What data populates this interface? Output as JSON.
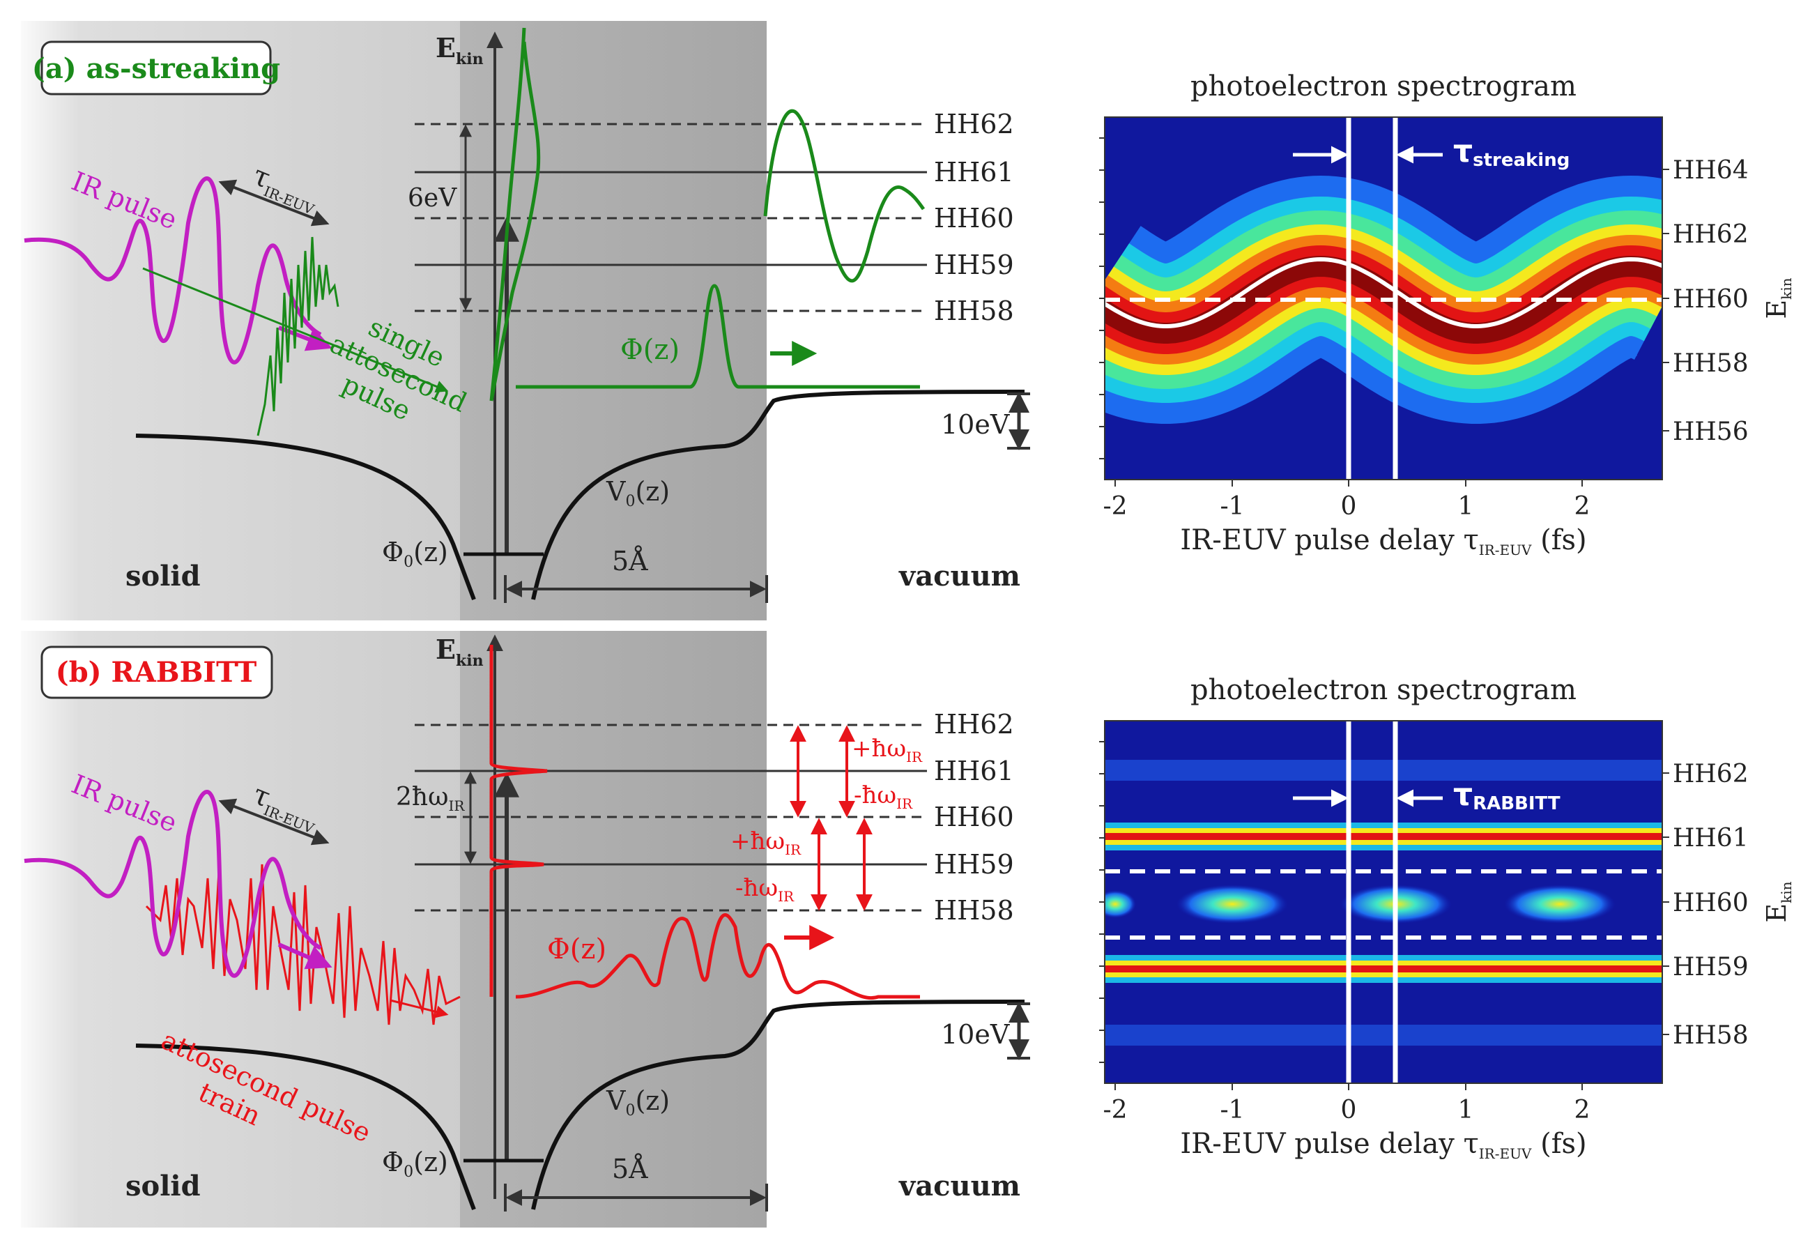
{
  "panels": [
    {
      "tag": "(a) as-streaking",
      "tag_color": "#1a8a1a",
      "accent": "#1a8a1a",
      "ekin": "E",
      "ekin_sub": "kin",
      "harmonics": [
        "HH62",
        "HH61",
        "HH60",
        "HH59",
        "HH58"
      ],
      "gap_label": "6eV",
      "gap_sub": "",
      "phi_label": "Φ(z)",
      "pulse_label_lines": [
        "single",
        "attosecond",
        "pulse"
      ],
      "ir_label": "IR pulse",
      "tau_label": "τ",
      "tau_sub": "IR-EUV",
      "v0_label": "V",
      "v0_sub": "0",
      "v0_tail": "(z)",
      "phi0_label": "Φ",
      "phi0_sub": "0",
      "phi0_tail": "(z)",
      "ten_ev": "10eV",
      "five_a": "5Å",
      "solid": "solid",
      "vacuum": "vacuum",
      "arrows": []
    },
    {
      "tag": "(b) RABBITT",
      "tag_color": "#e8141a",
      "accent": "#e8141a",
      "ekin": "E",
      "ekin_sub": "kin",
      "harmonics": [
        "HH62",
        "HH61",
        "HH60",
        "HH59",
        "HH58"
      ],
      "gap_label": "2ħω",
      "gap_sub": "IR",
      "phi_label": "Φ(z)",
      "pulse_label_lines": [
        "attosecond pulse",
        "train"
      ],
      "ir_label": "IR pulse",
      "tau_label": "τ",
      "tau_sub": "IR-EUV",
      "v0_label": "V",
      "v0_sub": "0",
      "v0_tail": "(z)",
      "phi0_label": "Φ",
      "phi0_sub": "0",
      "phi0_tail": "(z)",
      "ten_ev": "10eV",
      "five_a": "5Å",
      "solid": "solid",
      "vacuum": "vacuum",
      "arrows": [
        {
          "text": "+ħω",
          "sub": "IR"
        },
        {
          "text": "-ħω",
          "sub": "IR"
        },
        {
          "text": "+ħω",
          "sub": "IR"
        },
        {
          "text": "-ħω",
          "sub": "IR"
        }
      ]
    }
  ],
  "spectrograms": [
    {
      "title": "photoelectron spectrogram",
      "xlabel": "IR-EUV pulse delay τ",
      "xlabel_sub": "IR-EUV",
      "xlabel_tail": "(fs)",
      "ylabel": "E",
      "ylabel_sub": "kin",
      "xticks": [
        "-2",
        "-1",
        "0",
        "1",
        "2"
      ],
      "yticks": [
        "HH64",
        "HH62",
        "HH60",
        "HH58",
        "HH56"
      ],
      "tau_label": "τ",
      "tau_sub": "streaking"
    },
    {
      "title": "photoelectron spectrogram",
      "xlabel": "IR-EUV pulse delay τ",
      "xlabel_sub": "IR-EUV",
      "xlabel_tail": "(fs)",
      "ylabel": "E",
      "ylabel_sub": "kin",
      "xticks": [
        "-2",
        "-1",
        "0",
        "1",
        "2"
      ],
      "yticks": [
        "HH62",
        "HH61",
        "HH60",
        "HH59",
        "HH58"
      ],
      "tau_label": "τ",
      "tau_sub": "RABBITT"
    }
  ]
}
